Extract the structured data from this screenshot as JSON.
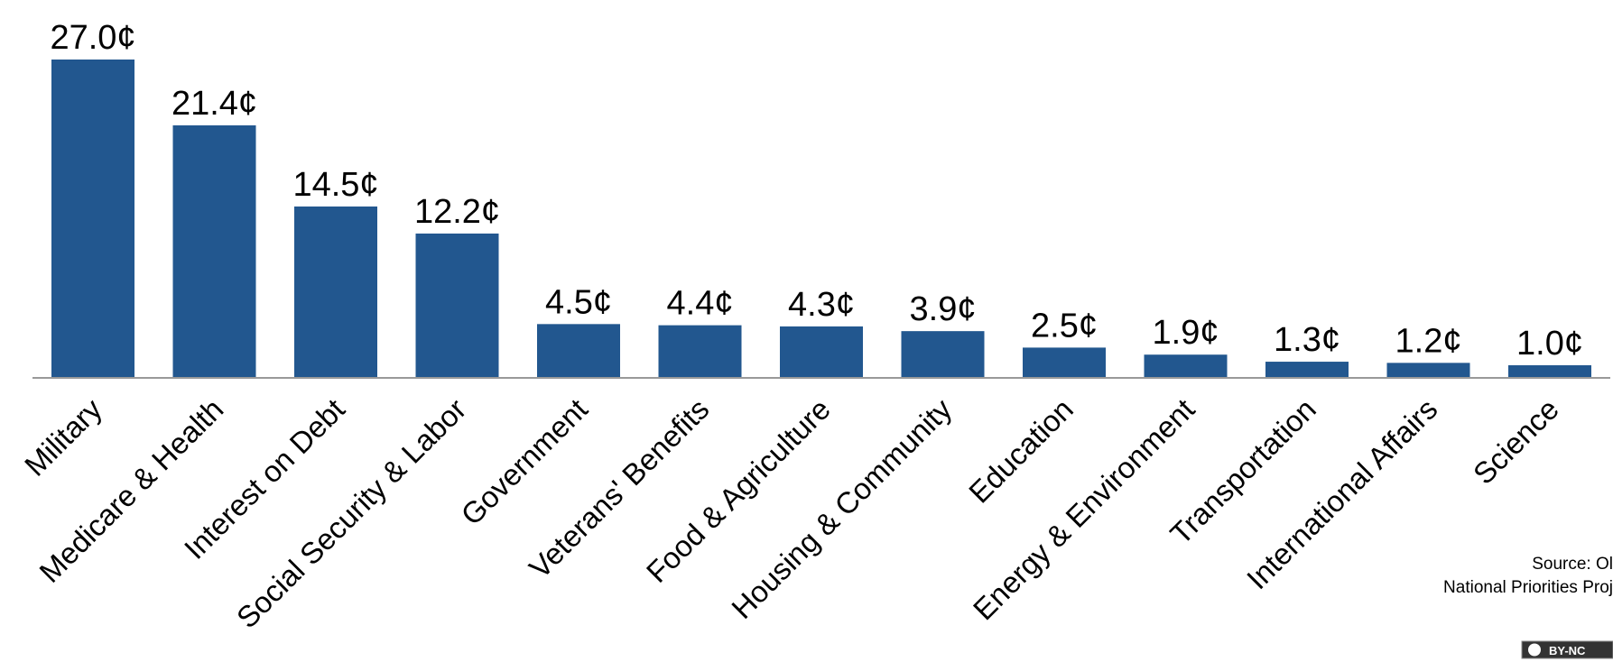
{
  "chart_data": {
    "type": "bar",
    "categories": [
      "Military",
      "Medicare & Health",
      "Interest on Debt",
      "Social Security & Labor",
      "Government",
      "Veterans' Benefits",
      "Food & Agriculture",
      "Housing & Community",
      "Education",
      "Energy & Environment",
      "Transportation",
      "International Affairs",
      "Science"
    ],
    "values": [
      27.0,
      21.4,
      14.5,
      12.2,
      4.5,
      4.4,
      4.3,
      3.9,
      2.5,
      1.9,
      1.3,
      1.2,
      1.0
    ],
    "value_labels": [
      "27.0¢",
      "21.4¢",
      "14.5¢",
      "12.2¢",
      "4.5¢",
      "4.4¢",
      "4.3¢",
      "3.9¢",
      "2.5¢",
      "1.9¢",
      "1.3¢",
      "1.2¢",
      "1.0¢"
    ],
    "color": "#22578f",
    "source": [
      "Source: Ol",
      "National Priorities Proj"
    ],
    "license": "BY-NC"
  }
}
